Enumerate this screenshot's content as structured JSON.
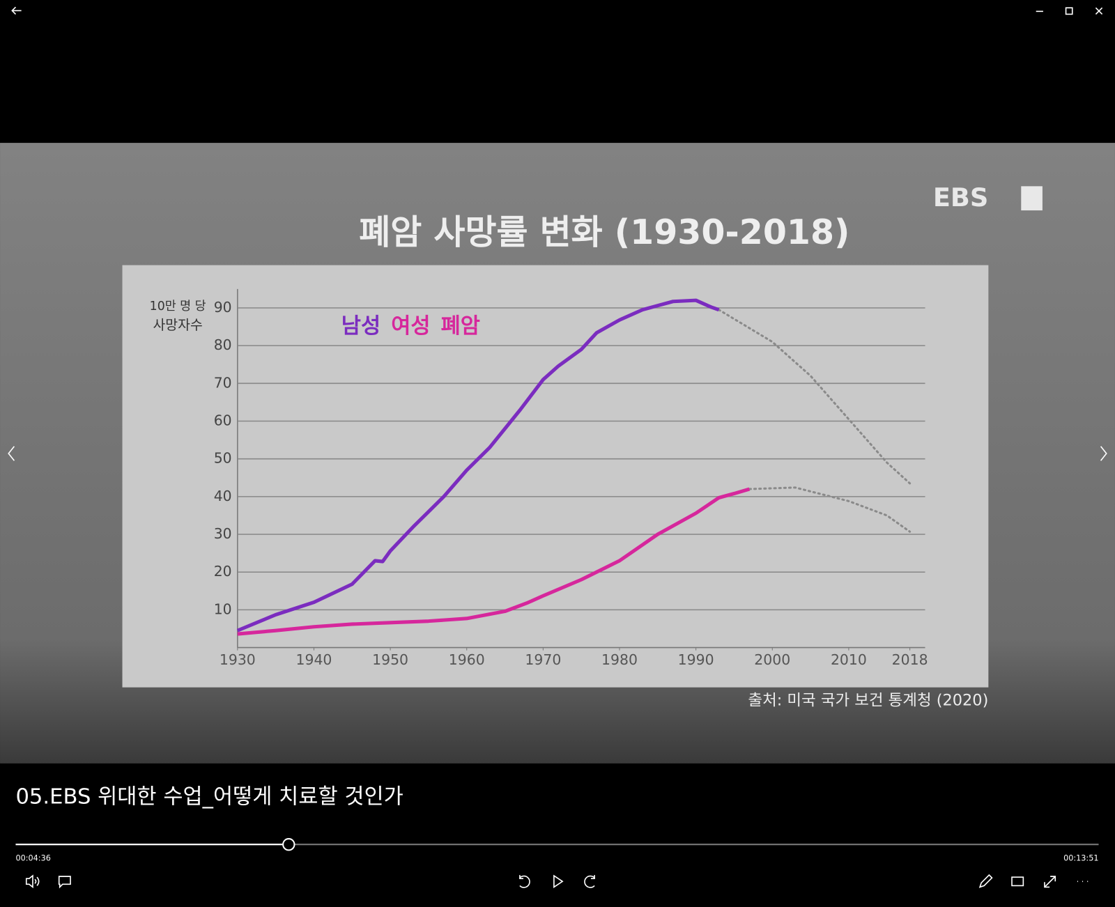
{
  "player": {
    "title": "05.EBS 위대한 수업_어떻게 치료할 것인가",
    "elapsed": "00:04:36",
    "duration": "00:13:51"
  },
  "chart_data": {
    "type": "line",
    "title": "폐암 사망률 변화 (1930-2018)",
    "logo": "EBS",
    "ylabel": [
      "10만 명 당",
      "사망자수"
    ],
    "annotation": "폐암",
    "source": "출처: 미국 국가 보건 통계청 (2020)",
    "xlim": [
      1930,
      2020
    ],
    "ylim": [
      0,
      95
    ],
    "xticks": [
      1930,
      1940,
      1950,
      1960,
      1970,
      1980,
      1990,
      2000,
      2010,
      2018
    ],
    "yticks": [
      10,
      20,
      30,
      40,
      50,
      60,
      70,
      80,
      90
    ],
    "grid": true,
    "series": [
      {
        "name": "남성",
        "color": "#7b2cbf",
        "x": [
          1930,
          1935,
          1940,
          1945,
          1948,
          1949,
          1950,
          1953,
          1955,
          1957,
          1960,
          1963,
          1965,
          1967,
          1970,
          1972,
          1975,
          1977,
          1980,
          1983,
          1985,
          1987,
          1990,
          1992,
          1993
        ],
        "values": [
          4.5,
          8.7,
          12,
          16.8,
          23,
          22.8,
          25.6,
          32,
          36,
          40,
          47,
          53,
          58,
          63,
          71,
          74.6,
          79,
          83.4,
          86.8,
          89.5,
          90.6,
          91.7,
          92,
          90.2,
          89.5
        ],
        "projection": {
          "x": [
            1993,
            2000,
            2005,
            2010,
            2015,
            2018
          ],
          "values": [
            89.5,
            81,
            72,
            60.5,
            49,
            43.5
          ]
        }
      },
      {
        "name": "여성",
        "color": "#d6279c",
        "x": [
          1930,
          1935,
          1940,
          1945,
          1950,
          1955,
          1960,
          1965,
          1968,
          1970,
          1975,
          1980,
          1985,
          1990,
          1993,
          1995,
          1997
        ],
        "values": [
          3.6,
          4.5,
          5.5,
          6.2,
          6.6,
          7,
          7.7,
          9.6,
          11.9,
          13.7,
          18,
          23,
          30,
          35.6,
          39.7,
          40.8,
          42
        ],
        "projection": {
          "x": [
            1997,
            2003,
            2010,
            2015,
            2018
          ],
          "values": [
            42,
            42.4,
            38.8,
            35,
            30.7
          ]
        }
      }
    ]
  }
}
